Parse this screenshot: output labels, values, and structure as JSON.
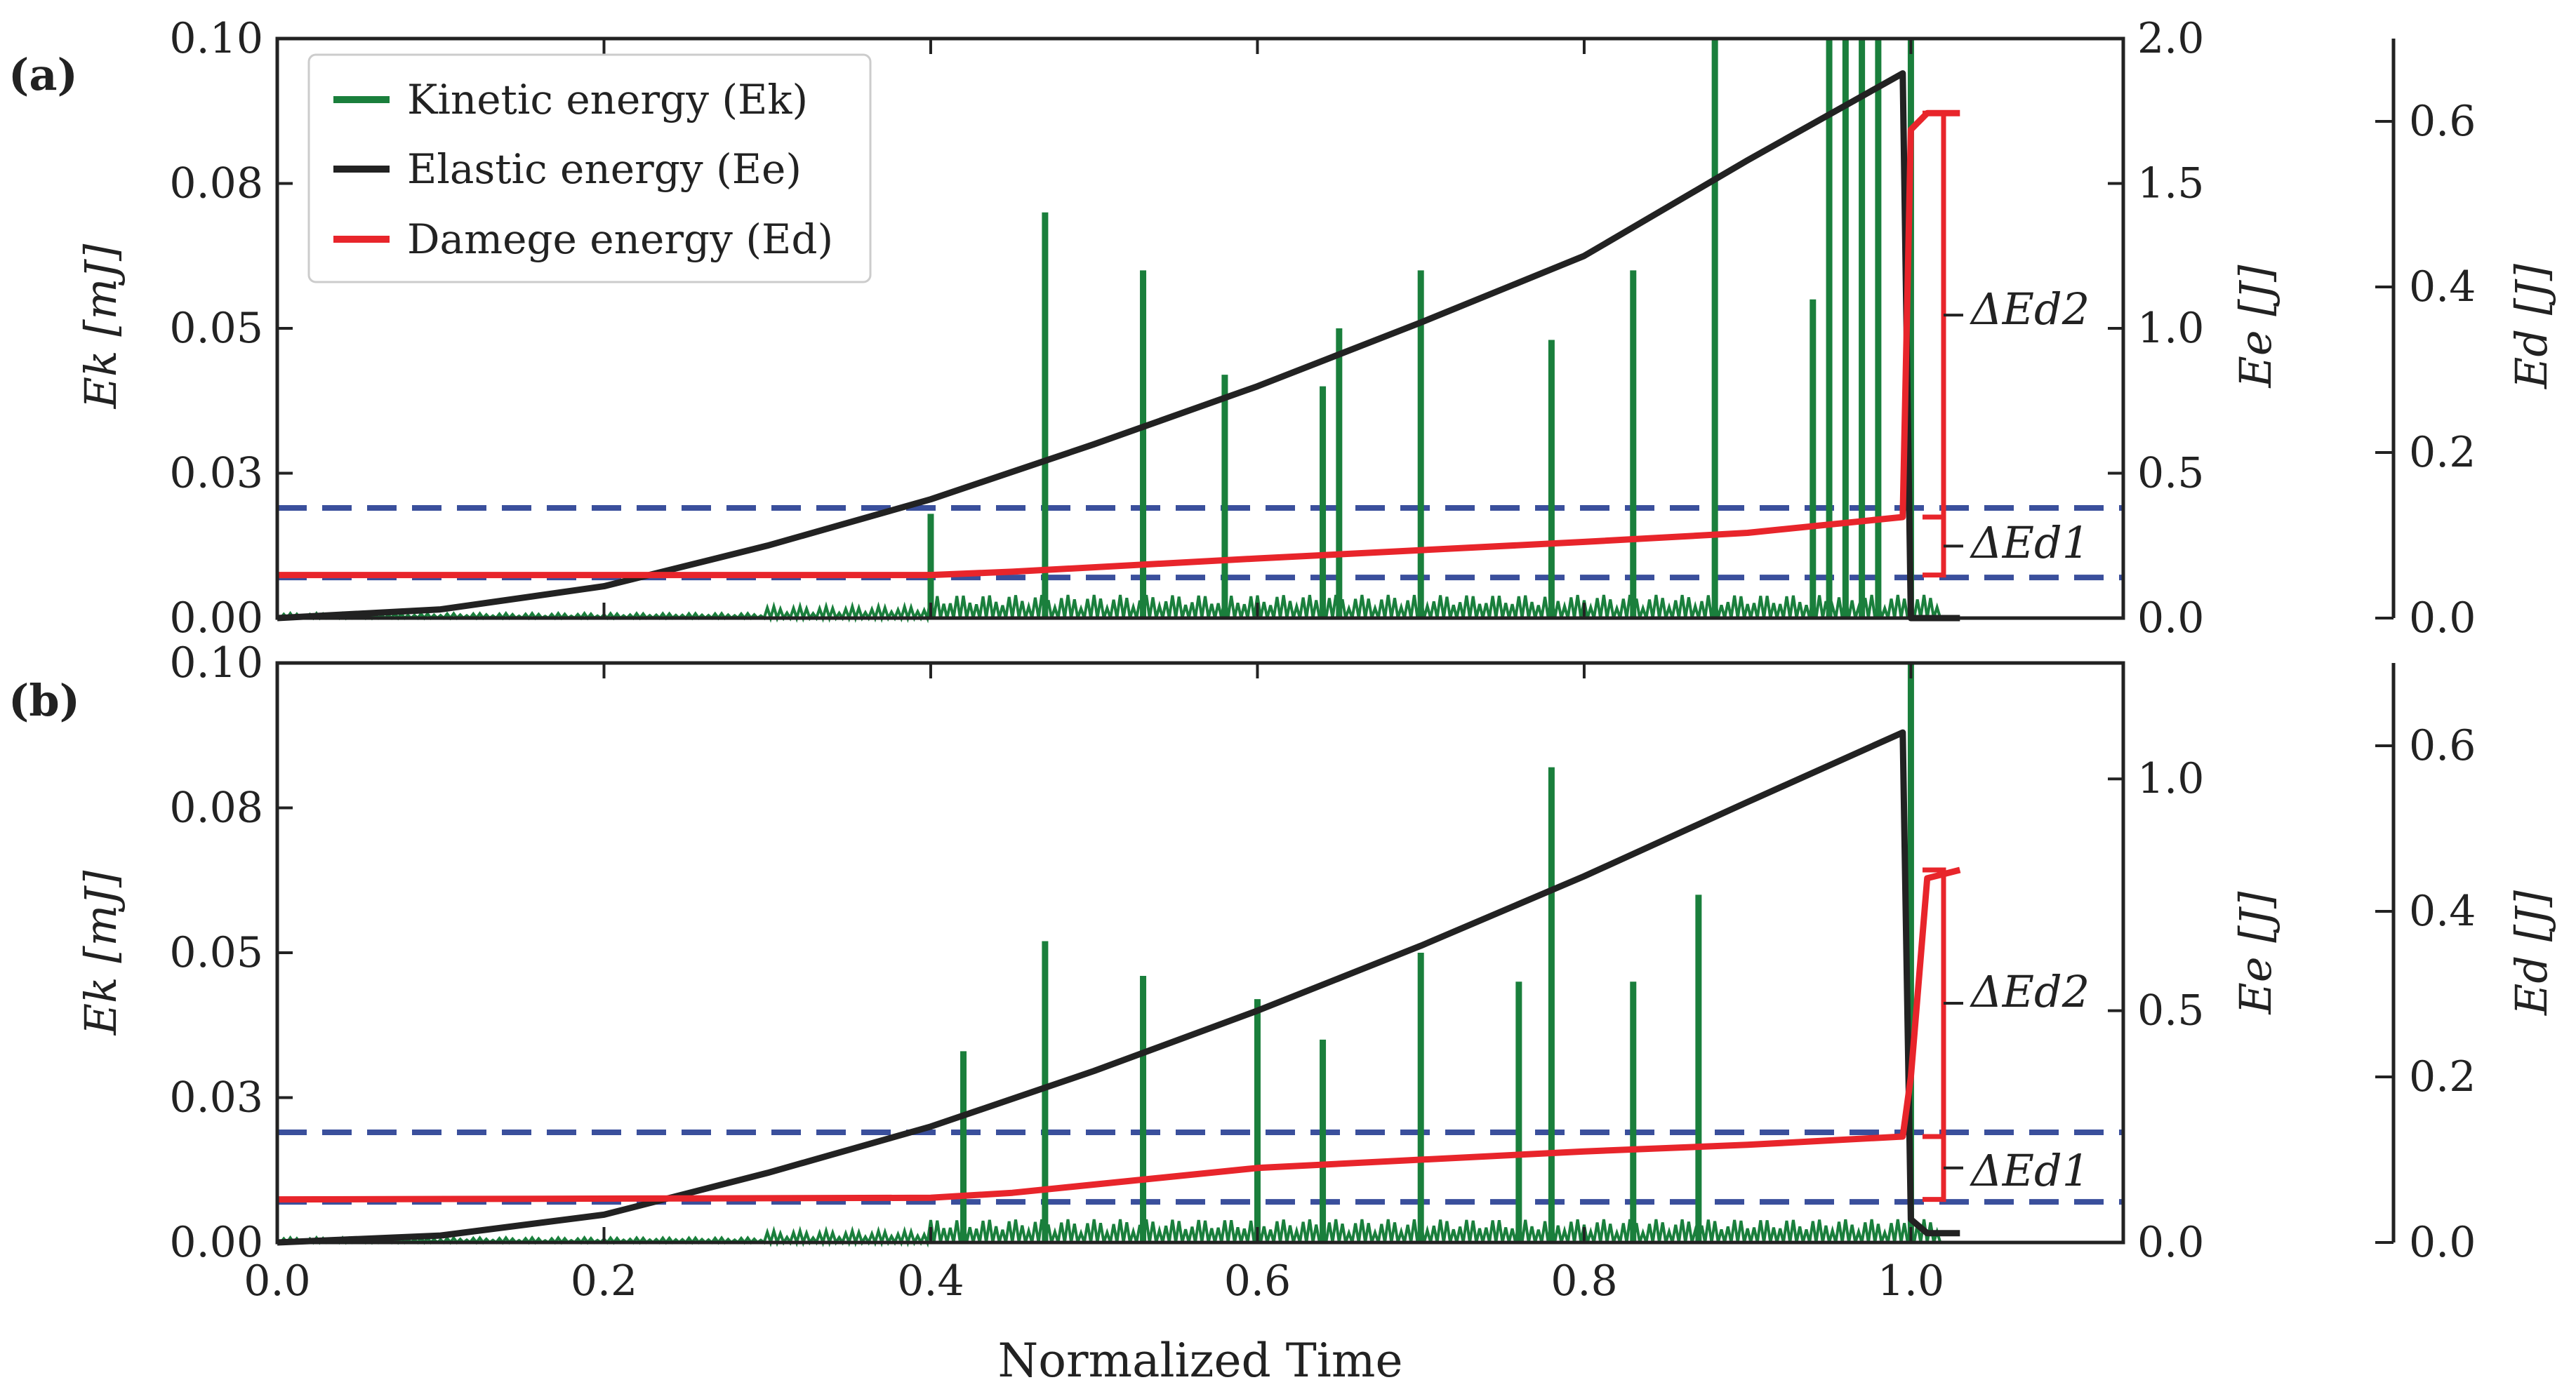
{
  "figure": {
    "xlabel": "Normalized Time",
    "x_ticks": [
      "0.0",
      "0.2",
      "0.4",
      "0.6",
      "0.8",
      "1.0"
    ],
    "colors": {
      "kinetic": "#1a7f3c",
      "elastic": "#222222",
      "damage": "#e8252b",
      "dashed": "#3a4f9c",
      "axis": "#222222"
    }
  },
  "legend": {
    "kinetic": "Kinetic energy (Ek)",
    "elastic": "Elastic energy (Ee)",
    "damage": "Damege energy (Ed)"
  },
  "chart_data": [
    {
      "type": "line",
      "panel_label": "(a)",
      "xlim": [
        0.0,
        1.13
      ],
      "xlabel": "Normalized Time",
      "y_left": {
        "label": "Ek [mJ]",
        "lim": [
          0.0,
          0.1
        ],
        "ticks": [
          "0.00",
          "0.03",
          "0.05",
          "0.08",
          "0.10"
        ]
      },
      "y_right": {
        "label": "Ee [J]",
        "lim": [
          0.0,
          2.0
        ],
        "ticks": [
          "0.0",
          "0.5",
          "1.0",
          "1.5",
          "2.0"
        ]
      },
      "y_right2": {
        "label": "Ed [J]",
        "lim": [
          0.0,
          0.7
        ],
        "ticks": [
          "0.0",
          "0.2",
          "0.4",
          "0.6"
        ]
      },
      "series": [
        {
          "name": "Elastic energy (Ee)",
          "axis": "y_right",
          "x": [
            0.0,
            0.1,
            0.2,
            0.3,
            0.4,
            0.5,
            0.6,
            0.7,
            0.8,
            0.9,
            0.995,
            1.0,
            1.03
          ],
          "y": [
            0.0,
            0.03,
            0.11,
            0.25,
            0.41,
            0.6,
            0.8,
            1.02,
            1.25,
            1.58,
            1.88,
            0.0,
            0.0
          ]
        },
        {
          "name": "Damege energy (Ed)",
          "axis": "y_right2",
          "x": [
            0.0,
            0.4,
            0.45,
            0.6,
            0.8,
            0.9,
            0.995,
            1.0,
            1.01,
            1.03
          ],
          "y": [
            0.052,
            0.052,
            0.056,
            0.072,
            0.092,
            0.103,
            0.122,
            0.59,
            0.61,
            0.61
          ]
        },
        {
          "name": "Kinetic energy (Ek)",
          "axis": "y_left",
          "x": [
            0.4,
            0.47,
            0.53,
            0.58,
            0.64,
            0.65,
            0.7,
            0.78,
            0.83,
            0.88,
            0.94,
            0.95,
            0.96,
            0.97,
            0.98,
            1.0
          ],
          "y": [
            0.018,
            0.07,
            0.06,
            0.042,
            0.04,
            0.05,
            0.06,
            0.048,
            0.06,
            0.1,
            0.055,
            0.1,
            0.1,
            0.1,
            0.1,
            0.1
          ]
        }
      ],
      "reference_lines": {
        "y_upper": 0.019,
        "y_lower": 0.007
      },
      "annotations": [
        "ΔEd2",
        "ΔEd1"
      ]
    },
    {
      "type": "line",
      "panel_label": "(b)",
      "xlim": [
        0.0,
        1.13
      ],
      "xlabel": "Normalized Time",
      "y_left": {
        "label": "Ek [mJ]",
        "lim": [
          0.0,
          0.1
        ],
        "ticks": [
          "0.00",
          "0.03",
          "0.05",
          "0.08",
          "0.10"
        ]
      },
      "y_right": {
        "label": "Ee [J]",
        "lim": [
          0.0,
          1.25
        ],
        "ticks": [
          "0.0",
          "0.5",
          "1.0"
        ]
      },
      "y_right2": {
        "label": "Ed [J]",
        "lim": [
          0.0,
          0.7
        ],
        "ticks": [
          "0.0",
          "0.2",
          "0.4",
          "0.6"
        ]
      },
      "series": [
        {
          "name": "Elastic energy (Ee)",
          "axis": "y_right",
          "x": [
            0.0,
            0.1,
            0.2,
            0.3,
            0.4,
            0.5,
            0.6,
            0.7,
            0.8,
            0.9,
            0.995,
            1.0,
            1.01,
            1.03
          ],
          "y": [
            0.0,
            0.015,
            0.06,
            0.15,
            0.25,
            0.37,
            0.5,
            0.64,
            0.79,
            0.95,
            1.1,
            0.05,
            0.02,
            0.02
          ]
        },
        {
          "name": "Damege energy (Ed)",
          "axis": "y_right2",
          "x": [
            0.0,
            0.4,
            0.45,
            0.6,
            0.8,
            0.9,
            0.995,
            1.0,
            1.01,
            1.03
          ],
          "y": [
            0.052,
            0.054,
            0.06,
            0.09,
            0.11,
            0.118,
            0.128,
            0.2,
            0.44,
            0.45
          ]
        },
        {
          "name": "Kinetic energy (Ek)",
          "axis": "y_left",
          "x": [
            0.42,
            0.47,
            0.53,
            0.6,
            0.64,
            0.7,
            0.76,
            0.78,
            0.83,
            0.87,
            1.0
          ],
          "y": [
            0.033,
            0.052,
            0.046,
            0.042,
            0.035,
            0.05,
            0.045,
            0.082,
            0.045,
            0.06,
            0.1
          ]
        }
      ],
      "reference_lines": {
        "y_upper": 0.019,
        "y_lower": 0.007
      },
      "annotations": [
        "ΔEd2",
        "ΔEd1"
      ]
    }
  ]
}
